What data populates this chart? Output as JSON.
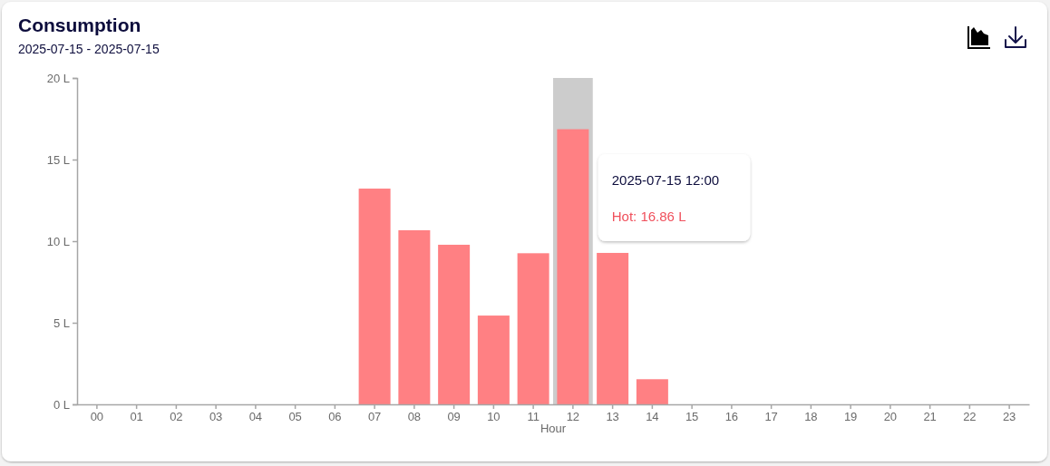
{
  "chart_data": {
    "type": "bar",
    "title": "Consumption",
    "subtitle": "2025-07-15 - 2025-07-15",
    "xlabel": "Hour",
    "categories": [
      "00",
      "01",
      "02",
      "03",
      "04",
      "05",
      "06",
      "07",
      "08",
      "09",
      "10",
      "11",
      "12",
      "13",
      "14",
      "15",
      "16",
      "17",
      "18",
      "19",
      "20",
      "21",
      "22",
      "23"
    ],
    "values": [
      0,
      0,
      0,
      0,
      0,
      0,
      0,
      13.22,
      10.67,
      9.78,
      5.44,
      9.26,
      16.86,
      9.28,
      1.54,
      0,
      0,
      0,
      0,
      0,
      0,
      0,
      0,
      0
    ],
    "color": "#ff8083",
    "ylim": [
      0,
      20
    ],
    "yticks": [
      {
        "value": 0,
        "label": "0 L"
      },
      {
        "value": 5,
        "label": "5 L"
      },
      {
        "value": 10,
        "label": "10 L"
      },
      {
        "value": 15,
        "label": "15 L"
      },
      {
        "value": 20,
        "label": "20 L"
      }
    ],
    "bands": [
      {
        "axis": "x",
        "from": "12",
        "to": "12",
        "color": "#cccccc"
      }
    ],
    "annotations": [
      "2025-07-15 12:00",
      "Hot: 16.86 L"
    ]
  }
}
